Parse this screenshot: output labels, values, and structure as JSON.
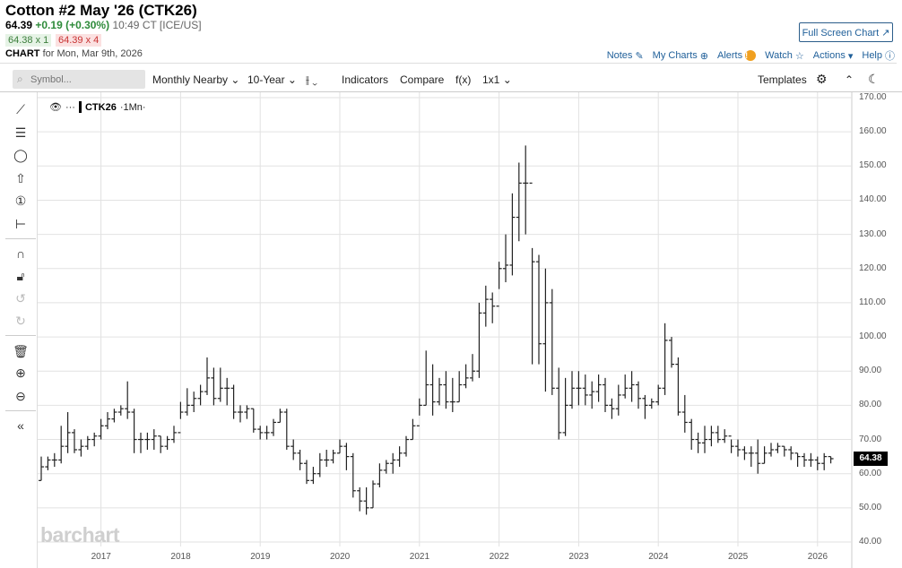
{
  "header": {
    "title": "Cotton #2 May '26 (CTK26)",
    "last": "64.39",
    "change": "+0.19 (+0.30%)",
    "time": "10:49 CT [ICE/US]",
    "bid": "64.38 x 1",
    "ask": "64.39 x 4",
    "chart_label": "CHART",
    "chart_for": "for Mon, Mar 9th, 2026",
    "fullscreen": "Full Screen Chart ↗"
  },
  "links": {
    "notes": "Notes",
    "mycharts": "My Charts",
    "alerts": "Alerts",
    "watch": "Watch",
    "actions": "Actions",
    "help": "Help"
  },
  "toolbar": {
    "symbol_placeholder": "Symbol...",
    "period": "Monthly Nearby",
    "range": "10-Year",
    "indicators": "Indicators",
    "compare": "Compare",
    "fx": "f(x)",
    "layout": "1x1",
    "templates": "Templates"
  },
  "legend": {
    "symbol": "CTK26",
    "interval": "·1Mn·"
  },
  "watermark": "barchart",
  "last_price_label": "64.38",
  "chart_data": {
    "type": "ohlc",
    "title": "Cotton #2 May '26 (CTK26) Monthly Nearby",
    "start": "2016-04",
    "interval": "month",
    "ylim": [
      40,
      170
    ],
    "yticks": [
      "40.00",
      "50.00",
      "60.00",
      "70.00",
      "80.00",
      "90.00",
      "100.00",
      "110.00",
      "120.00",
      "130.00",
      "140.00",
      "150.00",
      "160.00",
      "170.00"
    ],
    "xticks": [
      "2017",
      "2018",
      "2019",
      "2020",
      "2021",
      "2022",
      "2023",
      "2024",
      "2025",
      "2026"
    ],
    "close": [
      62,
      64,
      64,
      68,
      72,
      67,
      68,
      70,
      71,
      74,
      76,
      78,
      79,
      78,
      70,
      70,
      70,
      71,
      68,
      70,
      72,
      78,
      80,
      82,
      84,
      88,
      82,
      85,
      85,
      78,
      78,
      79,
      73,
      72,
      72,
      75,
      78,
      68,
      66,
      63,
      58,
      60,
      64,
      64,
      66,
      68,
      65,
      55,
      52,
      50,
      57,
      61,
      63,
      64,
      66,
      70,
      74,
      80,
      86,
      81,
      86,
      81,
      81,
      86,
      88,
      90,
      107,
      111,
      109,
      120,
      121,
      135,
      145,
      145,
      122,
      98,
      110,
      85,
      72,
      80,
      85,
      85,
      83,
      84,
      86,
      80,
      79,
      83,
      85,
      86,
      82,
      80,
      81,
      85,
      99,
      92,
      78,
      75,
      70,
      69,
      70,
      72,
      70,
      71,
      68,
      67,
      66,
      66,
      63,
      66,
      67,
      68,
      67,
      66,
      65,
      64,
      64,
      63,
      65,
      64.38
    ],
    "high": [
      65,
      65,
      66,
      74,
      78,
      73,
      70,
      71,
      72,
      76,
      78,
      79,
      80,
      87,
      79,
      72,
      72,
      73,
      71,
      71,
      74,
      81,
      85,
      84,
      86,
      94,
      91,
      91,
      88,
      86,
      80,
      80,
      79,
      74,
      74,
      76,
      79,
      79,
      70,
      67,
      64,
      62,
      66,
      67,
      67,
      70,
      69,
      66,
      56,
      56,
      58,
      63,
      64,
      66,
      68,
      71,
      76,
      82,
      96,
      92,
      88,
      90,
      88,
      90,
      92,
      95,
      110,
      115,
      113,
      122,
      130,
      142,
      151,
      156,
      126,
      124,
      120,
      114,
      91,
      88,
      90,
      90,
      89,
      87,
      89,
      88,
      82,
      86,
      89,
      90,
      87,
      83,
      82,
      86,
      104,
      100,
      94,
      83,
      76,
      72,
      74,
      74,
      74,
      73,
      70,
      70,
      68,
      68,
      70,
      68,
      69,
      69,
      68,
      68,
      66,
      66,
      66,
      65,
      66,
      65
    ],
    "low": [
      58,
      61,
      62,
      63,
      66,
      66,
      65,
      67,
      68,
      70,
      73,
      75,
      77,
      76,
      66,
      66,
      67,
      67,
      66,
      67,
      69,
      76,
      77,
      78,
      80,
      83,
      80,
      81,
      80,
      76,
      75,
      76,
      72,
      70,
      70,
      71,
      75,
      67,
      64,
      61,
      57,
      57,
      59,
      62,
      63,
      66,
      61,
      53,
      49,
      48,
      50,
      56,
      60,
      60,
      62,
      65,
      70,
      77,
      80,
      77,
      80,
      79,
      78,
      81,
      85,
      87,
      88,
      103,
      104,
      114,
      116,
      118,
      128,
      130,
      92,
      92,
      84,
      83,
      70,
      71,
      79,
      80,
      80,
      79,
      81,
      78,
      76,
      77,
      82,
      81,
      79,
      76,
      79,
      80,
      83,
      91,
      77,
      72,
      67,
      66,
      66,
      68,
      69,
      69,
      66,
      65,
      64,
      62,
      60,
      63,
      65,
      66,
      65,
      64,
      62,
      62,
      62,
      61,
      61,
      63
    ]
  }
}
